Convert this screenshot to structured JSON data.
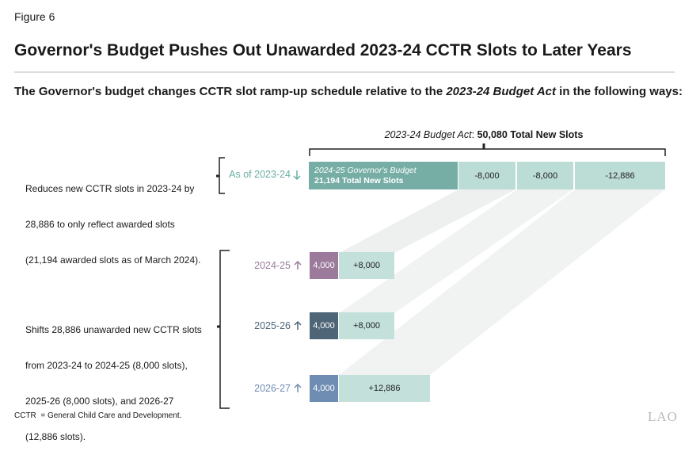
{
  "figure_label": "Figure 6",
  "title": "Governor's Budget Pushes Out Unawarded 2023-24 CCTR Slots to Later Years",
  "intro": {
    "text": "The Governor's budget changes CCTR slot ramp-up schedule relative to the ",
    "emphasis": "2023-24 Budget Act",
    "end": " in the following ways:"
  },
  "budget_act": {
    "name": "2023-24 Budget Act",
    "separator": ": ",
    "total": "50,080 Total New Slots"
  },
  "reduction": {
    "note_lines": [
      "Reduces new CCTR slots in 2023-24 by",
      "28,886 to only reflect awarded slots",
      "(21,194 awarded slots as of March 2024)."
    ],
    "label": "As of 2023-24",
    "segments": [
      {
        "label": "2024-25 Governor's Budget",
        "detail": "21,194 Total New Slots"
      },
      {
        "label": "-8,000"
      },
      {
        "label": "-8,000"
      },
      {
        "label": "-12,886"
      }
    ]
  },
  "shift": {
    "note_lines": [
      "Shifts 28,886 unawarded new CCTR slots",
      "from 2023-24 to 2024-25 (8,000 slots),",
      "2025-26 (8,000 slots), and 2026-27",
      "(12,886 slots)."
    ],
    "rows": [
      {
        "year": "2024-25",
        "base": "4,000",
        "added": "+8,000"
      },
      {
        "year": "2025-26",
        "base": "4,000",
        "added": "+8,000"
      },
      {
        "year": "2026-27",
        "base": "4,000",
        "added": "+12,886"
      }
    ]
  },
  "footnote": "CCTR  = General Child Care and Development.",
  "logo": "LAO"
}
